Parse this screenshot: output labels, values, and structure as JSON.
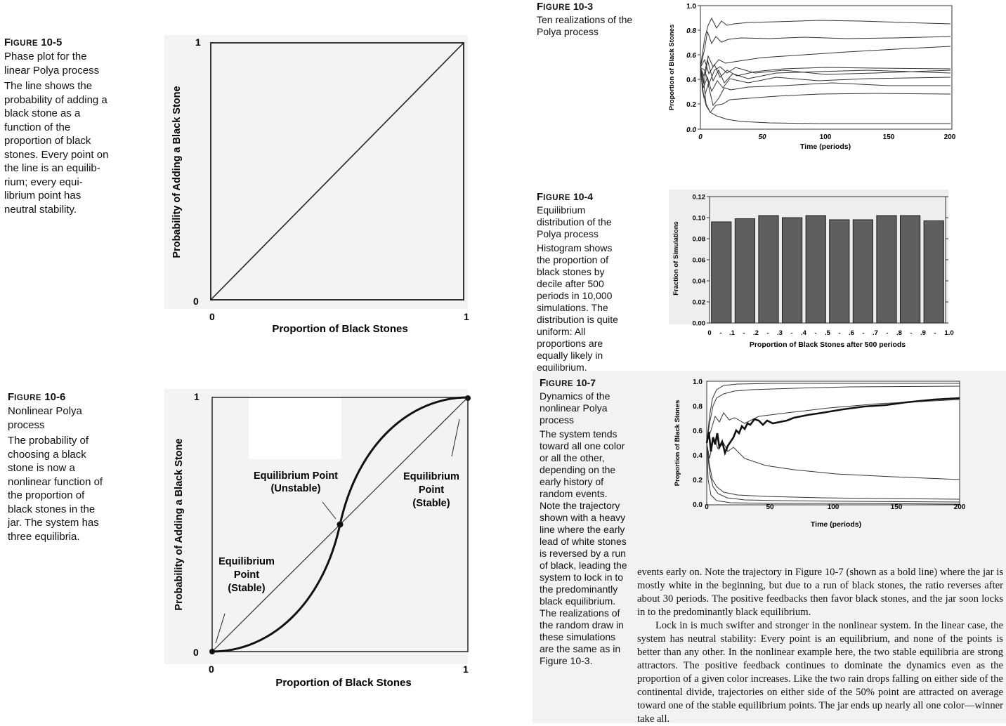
{
  "fig10_5": {
    "label": "Figure 10-5",
    "title": "Phase plot for the linear Polya process",
    "body": "The line shows the probability of adding a black stone as a function of the proportion of black stones. Every point on the line is an equilib­rium; every equi­librium point has neutral stability.",
    "chart": {
      "type": "line",
      "ylabel": "Probability of Adding a Black Stone",
      "xlabel": "Proportion of Black Stones",
      "x_ticks": [
        "0",
        "1"
      ],
      "y_ticks": [
        "0",
        "1"
      ]
    }
  },
  "fig10_6": {
    "label": "Figure 10-6",
    "title": "Nonlinear Polya process",
    "body": "The probability of choosing a black stone is now a nonlinear function of the proportion of black stones in the jar. The system has three equilibria.",
    "chart": {
      "type": "line",
      "ylabel": "Probability of Adding a Black Stone",
      "xlabel": "Proportion of Black Stones",
      "x_ticks": [
        "0",
        "1"
      ],
      "y_ticks": [
        "0",
        "1"
      ],
      "annotations": {
        "unstable": [
          "Equilibrium Point",
          "(Unstable)"
        ],
        "stable_top": [
          "Equilibrium",
          "Point",
          "(Stable)"
        ],
        "stable_bottom": [
          "Equilibrium",
          "Point",
          "(Stable)"
        ]
      }
    }
  },
  "fig10_3": {
    "label": "Figure 10-3",
    "title": "Ten realizations of the Polya process",
    "chart": {
      "type": "line",
      "ylabel": "Proportion of Black Stones",
      "xlabel": "Time (periods)",
      "x_ticks": [
        "0",
        "50",
        "100",
        "150",
        "200"
      ],
      "y_ticks": [
        "0.0",
        "0.2",
        "0.4",
        "0.6",
        "0.8",
        "1.0"
      ]
    }
  },
  "fig10_4": {
    "label": "Figure 10-4",
    "title": "Equilibrium distribution of the Polya process",
    "body": "Histogram shows the proportion of black stones by decile after 500 periods in 10,000 simulations. The distribution is quite uniform: All proportions are equally likely in equilibrium.",
    "chart": {
      "type": "bar",
      "ylabel": "Fraction of Simulations",
      "xlabel": "Proportion of Black Stones after 500 periods",
      "categories": [
        "0 - .1",
        ".1 - .2",
        ".2 - .3",
        ".3 - .4",
        ".4 - .5",
        ".5 - .6",
        ".6 - .7",
        ".7 - .8",
        ".8 - .9",
        ".9 - 1.0"
      ],
      "x_ticks": [
        "0",
        "-",
        ".1",
        "-",
        ".2",
        "-",
        ".3",
        "-",
        ".4",
        "-",
        ".5",
        "-",
        ".6",
        "-",
        ".7",
        "-",
        ".8",
        "-",
        ".9",
        "-",
        "1.0"
      ],
      "values": [
        0.096,
        0.099,
        0.102,
        0.1,
        0.102,
        0.098,
        0.098,
        0.102,
        0.102,
        0.097
      ],
      "y_ticks": [
        "0.00",
        "0.02",
        "0.04",
        "0.06",
        "0.08",
        "0.10",
        "0.12"
      ],
      "ylim": [
        0,
        0.12
      ]
    }
  },
  "fig10_7": {
    "label": "Figure 10-7",
    "title": "Dynamics of the nonlinear Polya process",
    "body": "The system tends toward all one color or all the other, depending on the early his­tory of random events. Note the trajectory shown with a heavy line where the early lead of white stones is reversed by a run of black, leading the system to lock in to the predominantly black equilibrium. The realizations of the random draw in these simula­tions are the same as in Figure 10-3.",
    "chart": {
      "type": "line",
      "ylabel": "Proportion of Black Stones",
      "xlabel": "Time (periods)",
      "x_ticks": [
        "0",
        "50",
        "100",
        "150",
        "200"
      ],
      "y_ticks": [
        "0.0",
        "0.2",
        "0.4",
        "0.6",
        "0.8",
        "1.0"
      ]
    }
  },
  "body_text": {
    "p1": "events early on. Note the trajectory in Figure 10-7 (shown as a bold line) where the jar is mostly white in the beginning, but due to a run of black stones, the ratio re­verses after about 30 periods. The positive feedbacks then favor black stones, and the jar soon locks in to the predominantly black equilibrium.",
    "p2": "Lock in is much swifter and stronger in the nonlinear system. In the linear case, the system has neutral stability: Every point is an equilibrium, and none of the points is better than any other. In the nonlinear example here, the two stable equilibria are strong attractors. The positive feedback continues to dominate the dynamics even as the proportion of a given color increases. Like the two rain drops falling on either side of the continental divide, trajectories on either side of the 50% point are attracted on average toward one of the stable equilibrium points. The jar ends up nearly all one color—winner take all."
  }
}
